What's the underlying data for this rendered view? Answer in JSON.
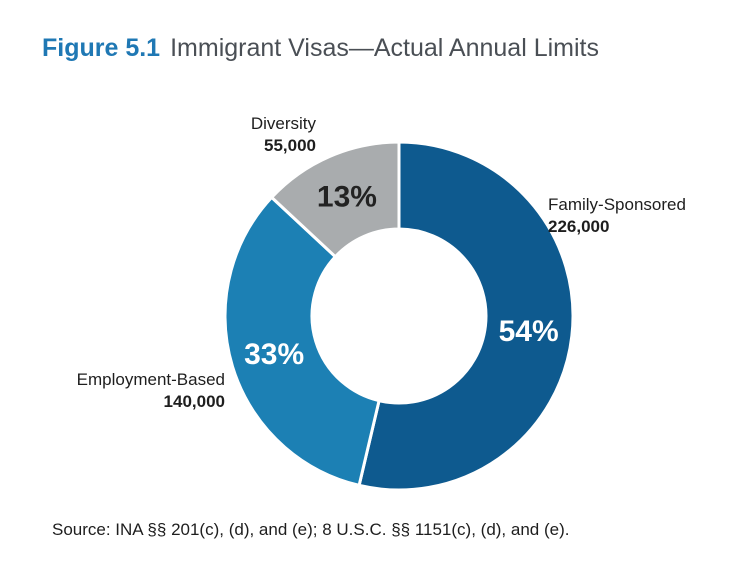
{
  "figure": {
    "number": "Figure 5.1",
    "title": "Immigrant Visas—Actual Annual Limits"
  },
  "source": "Source: INA §§ 201(c), (d), and (e); 8 U.S.C. §§ 1151(c), (d), and (e).",
  "chart_data": {
    "type": "pie",
    "donut": true,
    "title": "Immigrant Visas—Actual Annual Limits",
    "slices": [
      {
        "name": "Family-Sponsored",
        "value": 226000,
        "value_label": "226,000",
        "percent_label": "54%",
        "color": "#0e5a8f",
        "pct_text_color": "#ffffff"
      },
      {
        "name": "Employment-Based",
        "value": 140000,
        "value_label": "140,000",
        "percent_label": "33%",
        "color": "#1c80b4",
        "pct_text_color": "#ffffff"
      },
      {
        "name": "Diversity",
        "value": 55000,
        "value_label": "55,000",
        "percent_label": "13%",
        "color": "#a9acae",
        "pct_text_color": "#222222"
      }
    ]
  }
}
